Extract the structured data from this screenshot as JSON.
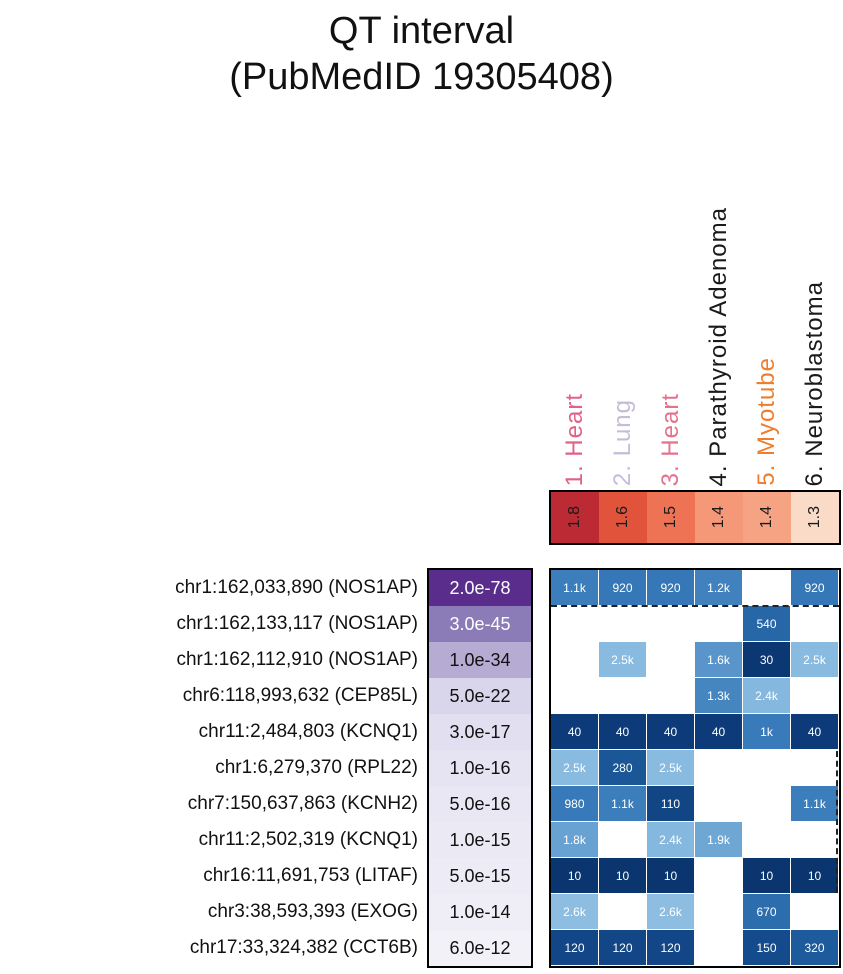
{
  "title": {
    "line1": "QT interval",
    "line2": "(PubMedID 19305408)"
  },
  "chart_data": {
    "type": "heatmap",
    "title": "QT interval (PubMedID 19305408)",
    "columns": [
      {
        "label": "1. Heart",
        "label_color": "#e06287",
        "score": "1.8",
        "score_bg": "#bc2a33"
      },
      {
        "label": "2. Lung",
        "label_color": "#c6bcd9",
        "score": "1.6",
        "score_bg": "#e1533b"
      },
      {
        "label": "3. Heart",
        "label_color": "#e4718e",
        "score": "1.5",
        "score_bg": "#ee7355"
      },
      {
        "label": "4. Parathyroid Adenoma",
        "label_color": "#1a1a1a",
        "score": "1.4",
        "score_bg": "#f49878"
      },
      {
        "label": "5. Myotube",
        "label_color": "#ee7e2d",
        "score": "1.4",
        "score_bg": "#f6a384"
      },
      {
        "label": "6. Neuroblastoma",
        "label_color": "#1a1a1a",
        "score": "1.3",
        "score_bg": "#fadbc8"
      }
    ],
    "rows": [
      {
        "label": "chr1:162,033,890 (NOS1AP)",
        "pvalue": "2.0e-78",
        "pvalue_bg": "#5a2d8c",
        "pvalue_fg": "#ffffff",
        "cells": [
          {
            "v": "1.1k",
            "bg": "#3c7ebc"
          },
          {
            "v": "920",
            "bg": "#3677b7"
          },
          {
            "v": "920",
            "bg": "#3677b7"
          },
          {
            "v": "1.2k",
            "bg": "#4182be"
          },
          {
            "v": "",
            "bg": "#ffffff"
          },
          {
            "v": "920",
            "bg": "#3677b7"
          }
        ]
      },
      {
        "label": "chr1:162,133,117 (NOS1AP)",
        "pvalue": "3.0e-45",
        "pvalue_bg": "#8b7cb8",
        "pvalue_fg": "#ffffff",
        "cells": [
          {
            "v": "",
            "bg": "#ffffff"
          },
          {
            "v": "",
            "bg": "#ffffff"
          },
          {
            "v": "",
            "bg": "#ffffff"
          },
          {
            "v": "",
            "bg": "#ffffff"
          },
          {
            "v": "540",
            "bg": "#2767a7"
          },
          {
            "v": "",
            "bg": "#ffffff"
          }
        ]
      },
      {
        "label": "chr1:162,112,910 (NOS1AP)",
        "pvalue": "1.0e-34",
        "pvalue_bg": "#b6abd3",
        "pvalue_fg": "#111111",
        "cells": [
          {
            "v": "",
            "bg": "#ffffff"
          },
          {
            "v": "2.5k",
            "bg": "#89bbe0"
          },
          {
            "v": "",
            "bg": "#ffffff"
          },
          {
            "v": "1.6k",
            "bg": "#5995ca"
          },
          {
            "v": "30",
            "bg": "#0b3773"
          },
          {
            "v": "2.5k",
            "bg": "#89bbe0"
          }
        ]
      },
      {
        "label": "chr6:118,993,632 (CEP85L)",
        "pvalue": "5.0e-22",
        "pvalue_bg": "#d9d6ec",
        "pvalue_fg": "#111111",
        "cells": [
          {
            "v": "",
            "bg": "#ffffff"
          },
          {
            "v": "",
            "bg": "#ffffff"
          },
          {
            "v": "",
            "bg": "#ffffff"
          },
          {
            "v": "1.3k",
            "bg": "#4586c1"
          },
          {
            "v": "2.4k",
            "bg": "#84b8de"
          },
          {
            "v": "",
            "bg": "#ffffff"
          }
        ]
      },
      {
        "label": "chr11:2,484,803 (KCNQ1)",
        "pvalue": "3.0e-17",
        "pvalue_bg": "#e2e0f0",
        "pvalue_fg": "#111111",
        "cells": [
          {
            "v": "40",
            "bg": "#0d3b79"
          },
          {
            "v": "40",
            "bg": "#0d3b79"
          },
          {
            "v": "40",
            "bg": "#0d3b79"
          },
          {
            "v": "40",
            "bg": "#0d3b79"
          },
          {
            "v": "1k",
            "bg": "#397bba"
          },
          {
            "v": "40",
            "bg": "#0d3b79"
          }
        ]
      },
      {
        "label": "chr1:6,279,370 (RPL22)",
        "pvalue": "1.0e-16",
        "pvalue_bg": "#e6e4f2",
        "pvalue_fg": "#111111",
        "cells": [
          {
            "v": "2.5k",
            "bg": "#89bbe0"
          },
          {
            "v": "280",
            "bg": "#1b5797"
          },
          {
            "v": "2.5k",
            "bg": "#89bbe0"
          },
          {
            "v": "",
            "bg": "#ffffff"
          },
          {
            "v": "",
            "bg": "#ffffff"
          },
          {
            "v": "",
            "bg": "#ffffff"
          }
        ]
      },
      {
        "label": "chr7:150,637,863 (KCNH2)",
        "pvalue": "5.0e-16",
        "pvalue_bg": "#e9e7f3",
        "pvalue_fg": "#111111",
        "cells": [
          {
            "v": "980",
            "bg": "#387ab9"
          },
          {
            "v": "1.1k",
            "bg": "#3c7ebc"
          },
          {
            "v": "110",
            "bg": "#114584"
          },
          {
            "v": "",
            "bg": "#ffffff"
          },
          {
            "v": "",
            "bg": "#ffffff"
          },
          {
            "v": "1.1k",
            "bg": "#3c7ebc"
          }
        ]
      },
      {
        "label": "chr11:2,502,319 (KCNQ1)",
        "pvalue": "1.0e-15",
        "pvalue_bg": "#ebeaf4",
        "pvalue_fg": "#111111",
        "cells": [
          {
            "v": "1.8k",
            "bg": "#68a2d2"
          },
          {
            "v": "",
            "bg": "#ffffff"
          },
          {
            "v": "2.4k",
            "bg": "#84b8de"
          },
          {
            "v": "1.9k",
            "bg": "#6ea6d4"
          },
          {
            "v": "",
            "bg": "#ffffff"
          },
          {
            "v": "",
            "bg": "#ffffff"
          }
        ]
      },
      {
        "label": "chr16:11,691,753 (LITAF)",
        "pvalue": "5.0e-15",
        "pvalue_bg": "#edecf6",
        "pvalue_fg": "#111111",
        "cells": [
          {
            "v": "10",
            "bg": "#0a356f"
          },
          {
            "v": "10",
            "bg": "#0a356f"
          },
          {
            "v": "10",
            "bg": "#0a356f"
          },
          {
            "v": "",
            "bg": "#ffffff"
          },
          {
            "v": "10",
            "bg": "#0a356f"
          },
          {
            "v": "10",
            "bg": "#0a356f"
          }
        ]
      },
      {
        "label": "chr3:38,593,393 (EXOG)",
        "pvalue": "1.0e-14",
        "pvalue_bg": "#efeef7",
        "pvalue_fg": "#111111",
        "cells": [
          {
            "v": "2.6k",
            "bg": "#8dbee2"
          },
          {
            "v": "",
            "bg": "#ffffff"
          },
          {
            "v": "2.6k",
            "bg": "#8dbee2"
          },
          {
            "v": "",
            "bg": "#ffffff"
          },
          {
            "v": "670",
            "bg": "#2c6dae"
          },
          {
            "v": "",
            "bg": "#ffffff"
          }
        ]
      },
      {
        "label": "chr17:33,324,382 (CCT6B)",
        "pvalue": "6.0e-12",
        "pvalue_bg": "#f2f1f8",
        "pvalue_fg": "#111111",
        "cells": [
          {
            "v": "120",
            "bg": "#124687"
          },
          {
            "v": "120",
            "bg": "#124687"
          },
          {
            "v": "120",
            "bg": "#124687"
          },
          {
            "v": "",
            "bg": "#ffffff"
          },
          {
            "v": "150",
            "bg": "#144b8c"
          },
          {
            "v": "320",
            "bg": "#1e5b9c"
          }
        ]
      }
    ]
  }
}
